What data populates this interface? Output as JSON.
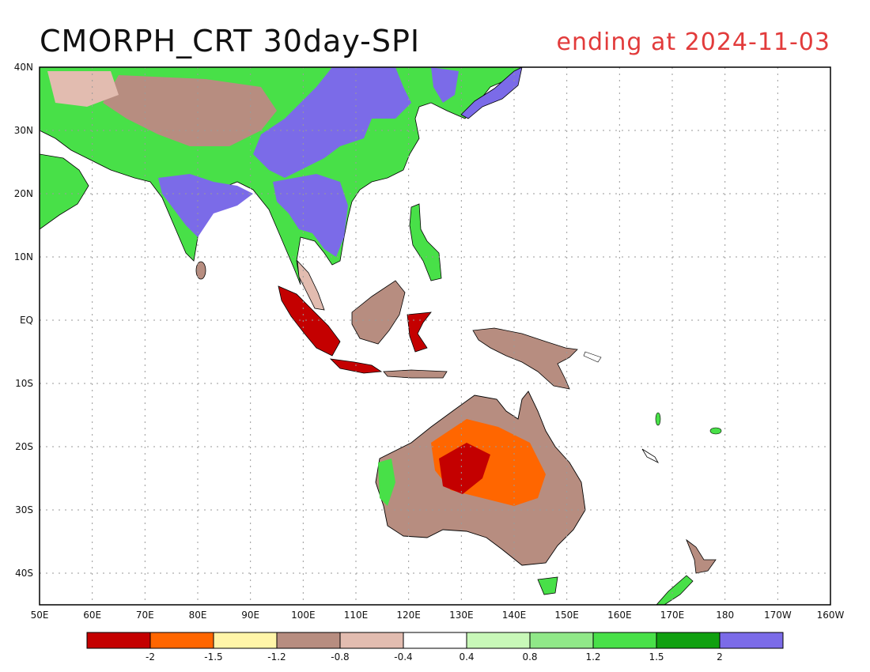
{
  "title": "CMORPH_CRT 30day-SPI",
  "subtitle": "ending at 2024-11-03",
  "map": {
    "lat_labels": [
      "40N",
      "30N",
      "20N",
      "10N",
      "EQ",
      "10S",
      "20S",
      "30S",
      "40S"
    ],
    "lon_labels": [
      "50E",
      "60E",
      "70E",
      "80E",
      "90E",
      "100E",
      "110E",
      "120E",
      "130E",
      "140E",
      "150E",
      "160E",
      "170E",
      "180",
      "170W",
      "160W"
    ]
  },
  "legend": {
    "colors": [
      "#c40000",
      "#ff6600",
      "#fff5a8",
      "#b78d80",
      "#e2bcb0",
      "#ffffff",
      "#c8f8b8",
      "#90e888",
      "#48e048",
      "#10a010",
      "#7b6be8"
    ],
    "labels": [
      "-2",
      "-1.5",
      "-1.2",
      "-0.8",
      "-0.4",
      "0.4",
      "0.8",
      "1.2",
      "1.5",
      "2"
    ]
  }
}
